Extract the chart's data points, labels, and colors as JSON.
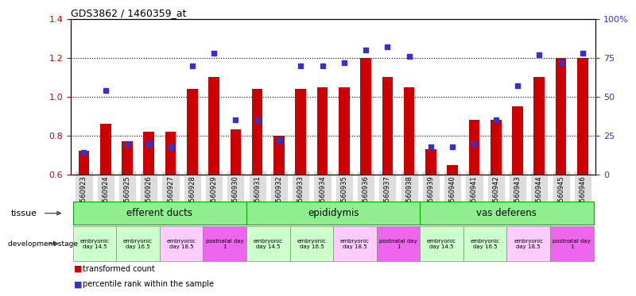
{
  "title": "GDS3862 / 1460359_at",
  "samples": [
    "GSM560923",
    "GSM560924",
    "GSM560925",
    "GSM560926",
    "GSM560927",
    "GSM560928",
    "GSM560929",
    "GSM560930",
    "GSM560931",
    "GSM560932",
    "GSM560933",
    "GSM560934",
    "GSM560935",
    "GSM560936",
    "GSM560937",
    "GSM560938",
    "GSM560939",
    "GSM560940",
    "GSM560941",
    "GSM560942",
    "GSM560943",
    "GSM560944",
    "GSM560945",
    "GSM560946"
  ],
  "red_values": [
    0.72,
    0.86,
    0.77,
    0.82,
    0.82,
    1.04,
    1.1,
    0.83,
    1.04,
    0.8,
    1.04,
    1.05,
    1.05,
    1.2,
    1.1,
    1.05,
    0.73,
    0.65,
    0.88,
    0.88,
    0.95,
    1.1,
    1.2,
    1.2
  ],
  "blue_values": [
    14,
    54,
    20,
    20,
    18,
    70,
    78,
    35,
    35,
    22,
    70,
    70,
    72,
    80,
    82,
    76,
    18,
    18,
    20,
    35,
    57,
    77,
    72,
    78
  ],
  "tissue_labels": [
    "efferent ducts",
    "epididymis",
    "vas deferens"
  ],
  "tissue_ranges": [
    [
      0,
      8
    ],
    [
      8,
      16
    ],
    [
      16,
      24
    ]
  ],
  "tissue_color": "#90ee90",
  "tissue_border_color": "#00aa00",
  "dev_labels": [
    "embryonic\nday 14.5",
    "embryonic\nday 16.5",
    "embryonic\nday 18.5",
    "postnatal day\n1"
  ],
  "dev_ranges": [
    [
      0,
      2
    ],
    [
      2,
      4
    ],
    [
      4,
      6
    ],
    [
      6,
      8
    ],
    [
      8,
      10
    ],
    [
      10,
      12
    ],
    [
      12,
      14
    ],
    [
      14,
      16
    ],
    [
      16,
      18
    ],
    [
      18,
      20
    ],
    [
      20,
      22
    ],
    [
      22,
      24
    ]
  ],
  "dev_colors": [
    "#ccffcc",
    "#ccffcc",
    "#ffccff",
    "#ee66ee",
    "#ccffcc",
    "#ccffcc",
    "#ffccff",
    "#ee66ee",
    "#ccffcc",
    "#ccffcc",
    "#ffccff",
    "#ee66ee"
  ],
  "dev_border_color": "#888888",
  "ylim_left": [
    0.6,
    1.4
  ],
  "ylim_right": [
    0,
    100
  ],
  "yticks_left": [
    0.6,
    0.8,
    1.0,
    1.2,
    1.4
  ],
  "yticks_right": [
    0,
    25,
    50,
    75,
    100
  ],
  "red_color": "#cc0000",
  "blue_color": "#3333cc",
  "bar_width": 0.5,
  "bg_color": "#ffffff",
  "xticklabel_bg": "#dddddd"
}
